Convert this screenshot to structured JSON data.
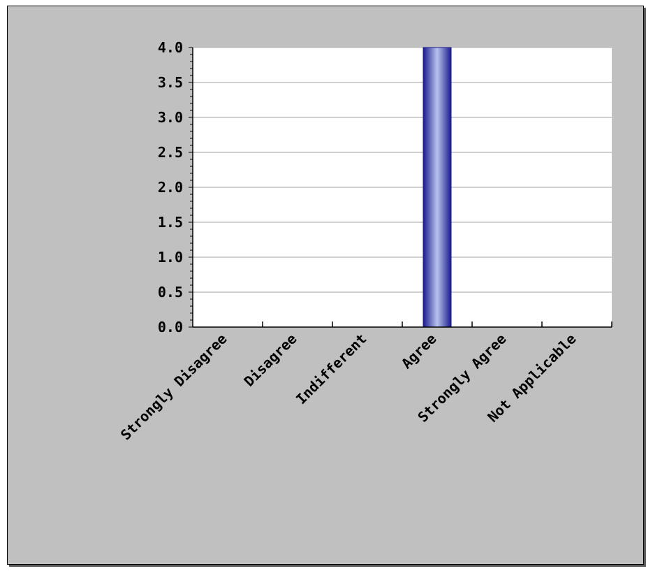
{
  "chart_data": {
    "type": "bar",
    "title": "",
    "xlabel": "",
    "ylabel": "",
    "categories": [
      "Strongly Disagree",
      "Disagree",
      "Indifferent",
      "Agree",
      "Strongly Agree",
      "Not Applicable"
    ],
    "values": [
      0,
      0,
      0,
      4,
      0,
      0
    ],
    "ylim": [
      0,
      4
    ],
    "yticks": [
      "0.0",
      "0.5",
      "1.0",
      "1.5",
      "2.0",
      "2.5",
      "3.0",
      "3.5",
      "4.0"
    ],
    "grid": true,
    "colors": {
      "bar": "#1a1a8c",
      "bar_highlight": "#b8c4ee",
      "plot_background": "#ffffff",
      "panel_background": "#c0c0c0",
      "gridline": "#c0c0c0"
    }
  }
}
